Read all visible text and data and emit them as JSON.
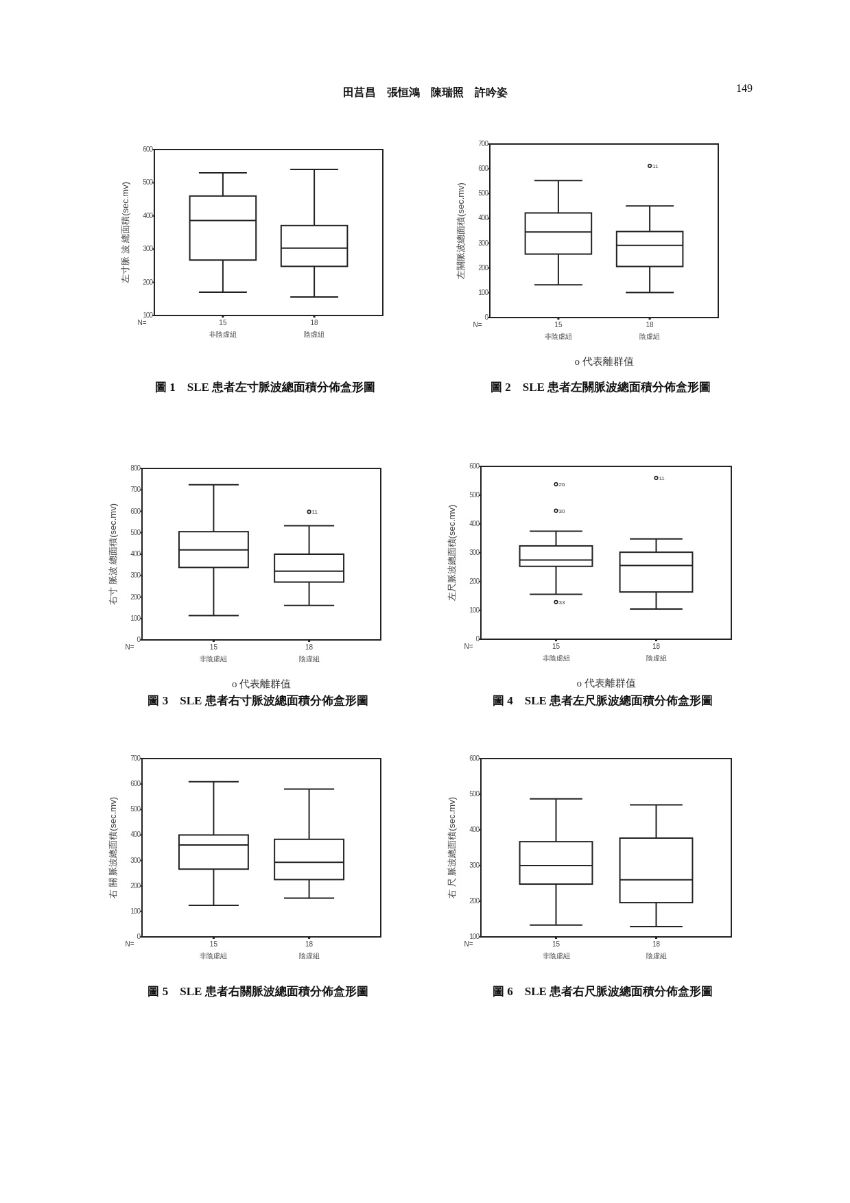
{
  "chart_data": [
    {
      "type": "box",
      "title": "圖 1　SLE 患者左寸脈波總面積分佈盒形圖",
      "ylabel": "左寸脈 波 總面積(sec.mv)",
      "categories": [
        "非陰虛組",
        "陰虛組"
      ],
      "ylim": [
        100,
        600
      ],
      "yticks": [
        100,
        200,
        300,
        400,
        500,
        600
      ],
      "boxes": [
        {
          "low": 170,
          "q1": 267,
          "median": 386,
          "q3": 460,
          "high": 530
        },
        {
          "low": 156,
          "q1": 248,
          "median": 303,
          "q3": 371,
          "high": 540
        }
      ],
      "annotations": [
        "田莒昌　張恒鴻　陳瑞照　許吟姿",
        "149",
        "N=",
        "15",
        "18"
      ]
    },
    {
      "type": "box",
      "title": "圖 2　SLE 患者左關脈波總面積分佈盒形圖",
      "ylabel": "左關脈波總面積(sec.mv)",
      "categories": [
        "非陰虛組",
        "陰虛組"
      ],
      "ylim": [
        0,
        700
      ],
      "yticks": [
        0,
        100,
        200,
        300,
        400,
        500,
        600,
        700
      ],
      "boxes": [
        {
          "low": 132,
          "q1": 256,
          "median": 345,
          "q3": 422,
          "high": 553
        },
        {
          "low": 101,
          "q1": 206,
          "median": 291,
          "q3": 347,
          "high": 450,
          "outliers": [
            612
          ]
        }
      ],
      "annotations": [
        "N=",
        "15",
        "18",
        "11",
        "o 代表離群值"
      ]
    },
    {
      "type": "box",
      "title": "圖 3　SLE 患者右寸脈波總面積分佈盒形圖",
      "ylabel": "右寸 脈波 總面積(sec.mv)",
      "categories": [
        "非陰虛組",
        "陰虛組"
      ],
      "ylim": [
        0,
        800
      ],
      "yticks": [
        0,
        100,
        200,
        300,
        400,
        500,
        600,
        700,
        800
      ],
      "boxes": [
        {
          "low": 114,
          "q1": 338,
          "median": 420,
          "q3": 505,
          "high": 724
        },
        {
          "low": 161,
          "q1": 270,
          "median": 321,
          "q3": 400,
          "high": 533,
          "outliers": [
            598
          ]
        }
      ],
      "annotations": [
        "N=",
        "15",
        "18",
        "11",
        "o 代表離群值"
      ]
    },
    {
      "type": "box",
      "title": "圖 4　SLE 患者左尺脈波總面積分佈盒形圖",
      "ylabel": "左尺脈波總面積(sec.mv)",
      "categories": [
        "非陰虛組",
        "陰虛組"
      ],
      "ylim": [
        0,
        600
      ],
      "yticks": [
        0,
        100,
        200,
        300,
        400,
        500,
        600
      ],
      "boxes": [
        {
          "low": 156,
          "q1": 253,
          "median": 275,
          "q3": 324,
          "high": 375,
          "outliers": [
            538,
            446,
            129
          ]
        },
        {
          "low": 105,
          "q1": 164,
          "median": 256,
          "q3": 302,
          "high": 348,
          "outliers": [
            560
          ]
        }
      ],
      "annotations": [
        "N=",
        "15",
        "18",
        "26",
        "30",
        "33",
        "11",
        "o 代表離群值"
      ]
    },
    {
      "type": "box",
      "title": "圖 5　SLE 患者右關脈波總面積分佈盒形圖",
      "ylabel": "右 關 脈波總面積(sec.mv)",
      "categories": [
        "非陰虛組",
        "陰虛組"
      ],
      "ylim": [
        0,
        700
      ],
      "yticks": [
        0,
        100,
        200,
        300,
        400,
        500,
        600,
        700
      ],
      "boxes": [
        {
          "low": 124,
          "q1": 266,
          "median": 361,
          "q3": 400,
          "high": 609
        },
        {
          "low": 152,
          "q1": 225,
          "median": 293,
          "q3": 383,
          "high": 580
        }
      ],
      "annotations": [
        "N=",
        "15",
        "18"
      ]
    },
    {
      "type": "box",
      "title": "圖 6　SLE 患者右尺脈波總面積分佈盒形圖",
      "ylabel": "右 尺 脈波總面積(sec.mv)",
      "categories": [
        "非陰虛組",
        "陰虛組"
      ],
      "ylim": [
        100,
        600
      ],
      "yticks": [
        100,
        200,
        300,
        400,
        500,
        600
      ],
      "boxes": [
        {
          "low": 133,
          "q1": 248,
          "median": 300,
          "q3": 367,
          "high": 487
        },
        {
          "low": 129,
          "q1": 196,
          "median": 260,
          "q3": 377,
          "high": 470
        }
      ],
      "annotations": [
        "N=",
        "15",
        "18"
      ]
    }
  ]
}
